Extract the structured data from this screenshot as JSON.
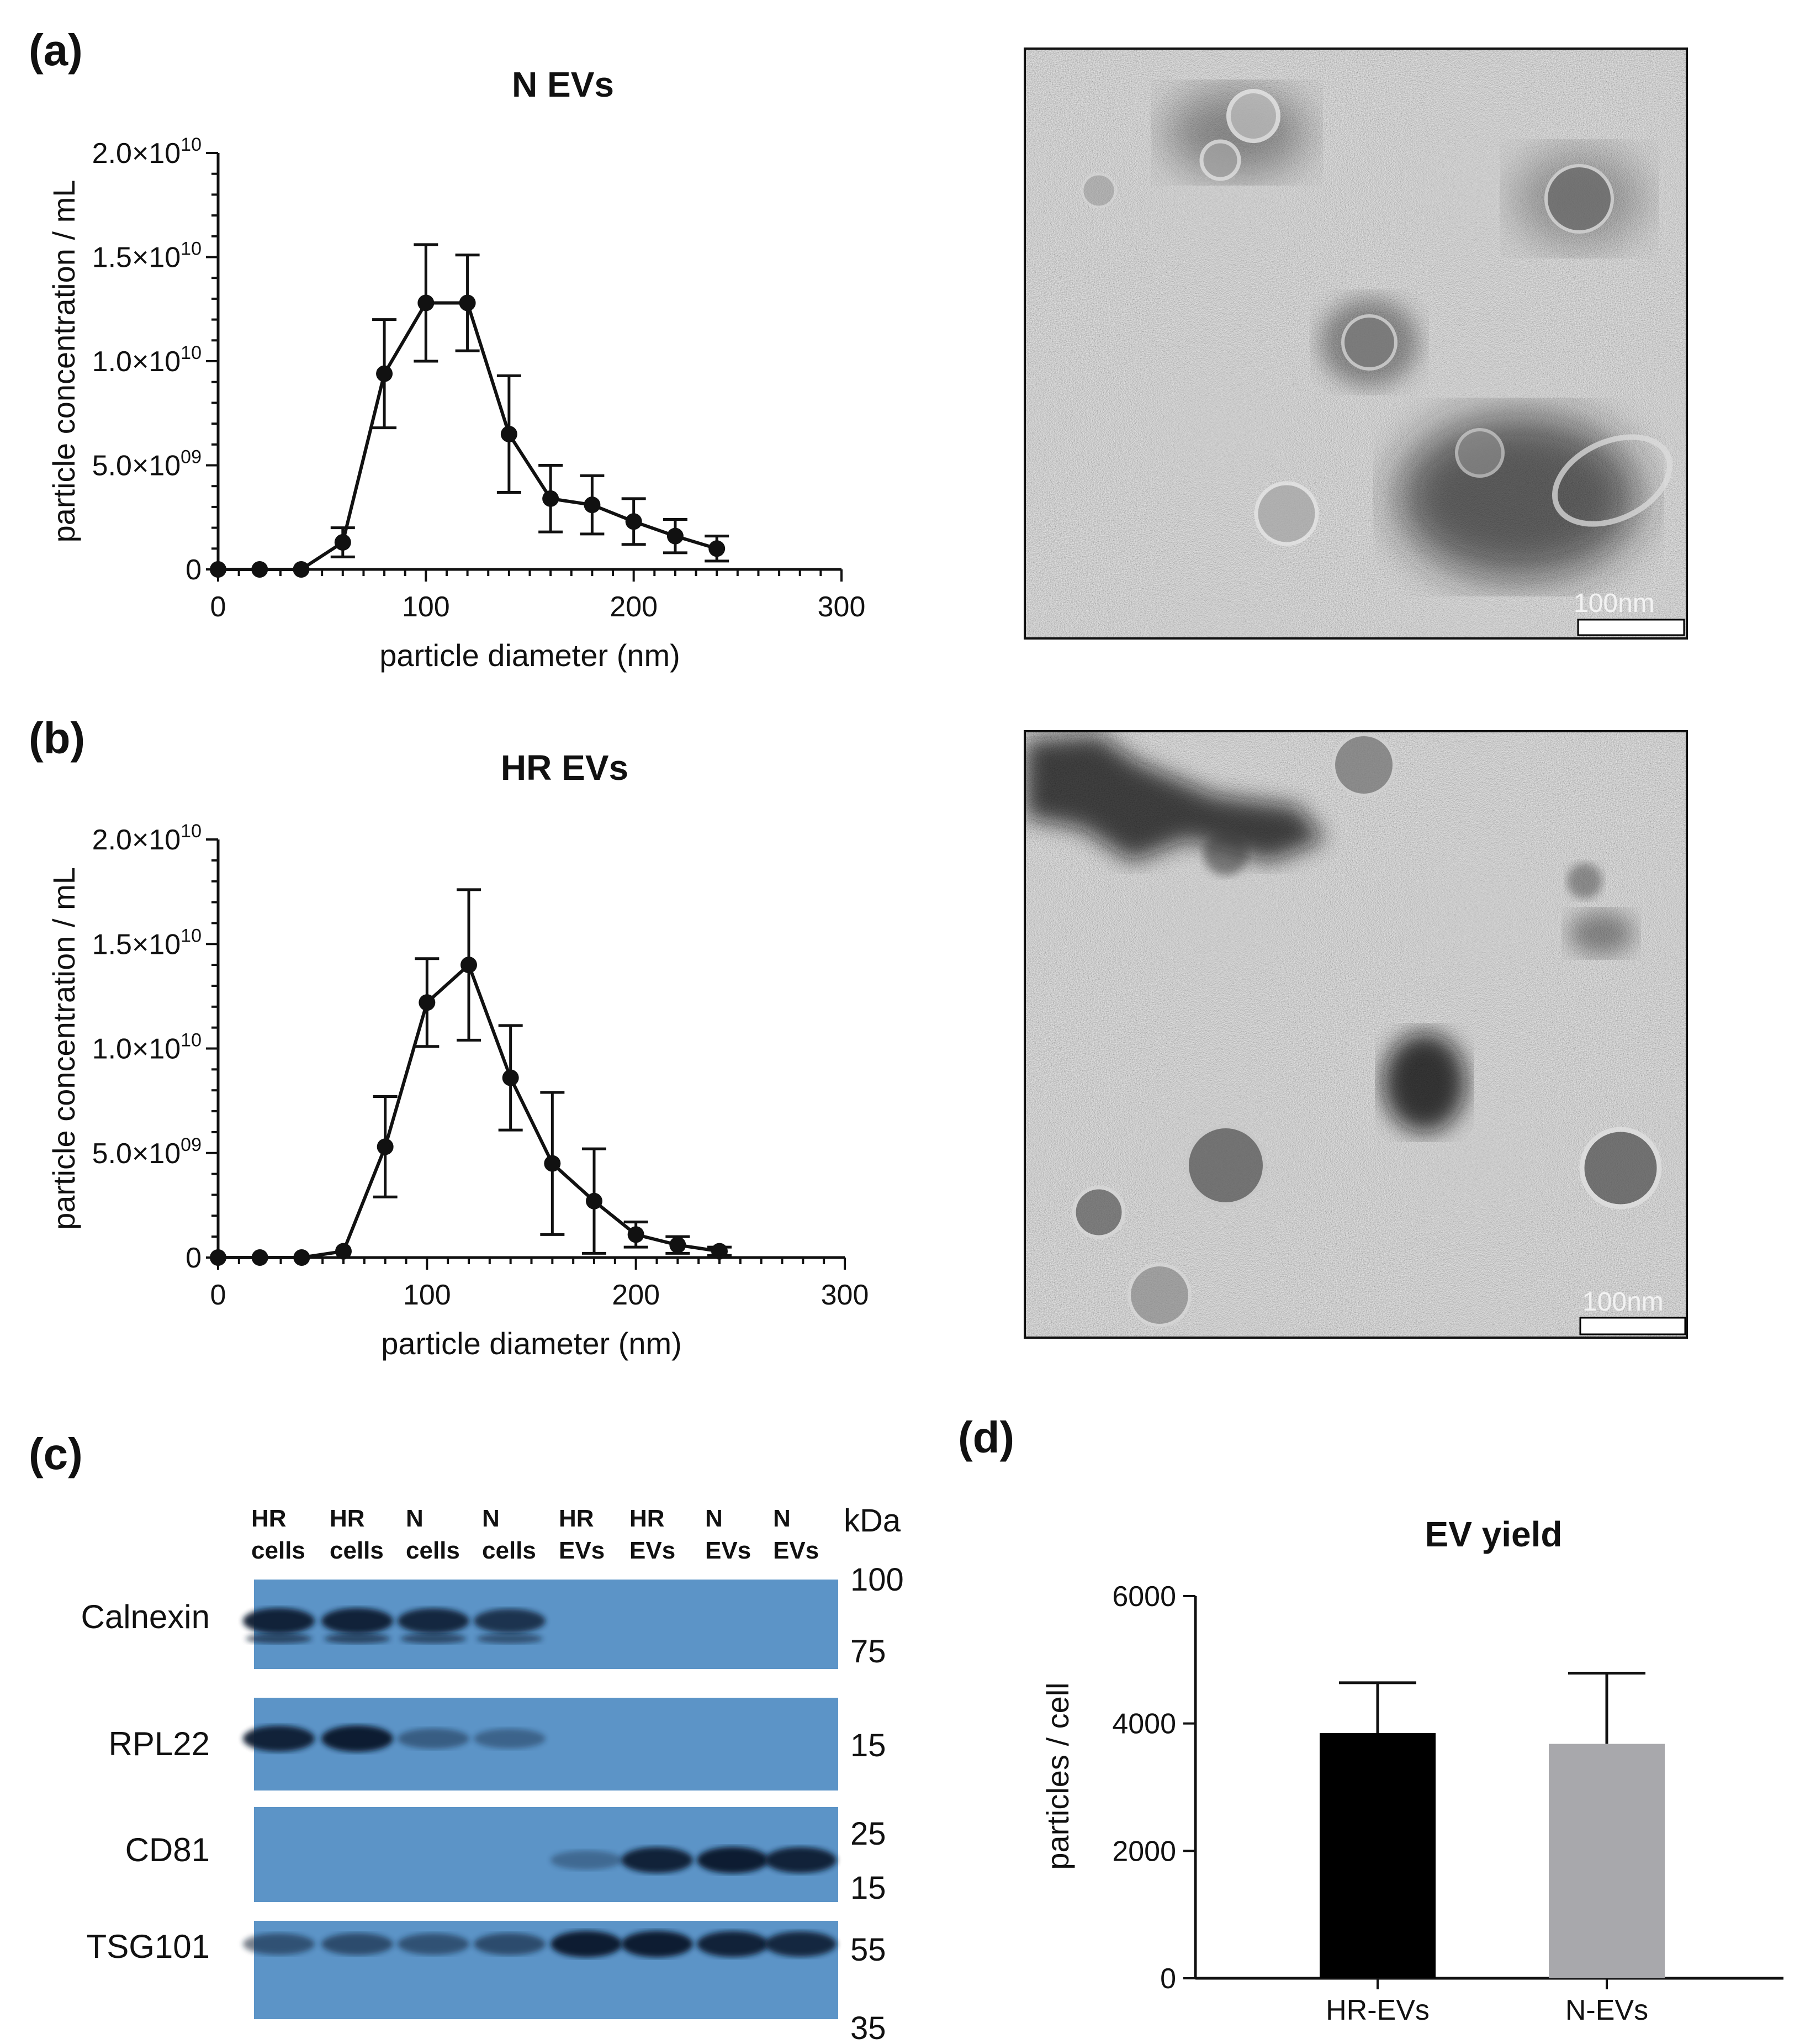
{
  "figure": {
    "panel_a_letter": "(a)",
    "panel_b_letter": "(b)",
    "panel_c_letter": "(c)",
    "panel_d_letter": "(d)"
  },
  "em": {
    "scale_label_a": "100nm",
    "scale_label_b": "100nm"
  },
  "western_blot": {
    "kda_label": "kDa",
    "lanes": [
      {
        "line1": "HR",
        "line2": "cells"
      },
      {
        "line1": "HR",
        "line2": "cells"
      },
      {
        "line1": "N",
        "line2": "cells"
      },
      {
        "line1": "N",
        "line2": "cells"
      },
      {
        "line1": "HR",
        "line2": "EVs"
      },
      {
        "line1": "HR",
        "line2": "EVs"
      },
      {
        "line1": "N",
        "line2": "EVs"
      },
      {
        "line1": "N",
        "line2": "EVs"
      }
    ],
    "strips": [
      {
        "protein": "Calnexin",
        "markers": [
          "100",
          "75"
        ],
        "band_intensity": [
          0.95,
          0.95,
          0.9,
          0.8,
          0.0,
          0.0,
          0.0,
          0.0
        ]
      },
      {
        "protein": "RPL22",
        "markers": [
          "15"
        ],
        "band_intensity": [
          0.95,
          1.0,
          0.45,
          0.4,
          0.0,
          0.0,
          0.0,
          0.0
        ]
      },
      {
        "protein": "CD81",
        "markers": [
          "25",
          "15"
        ],
        "band_intensity": [
          0.0,
          0.0,
          0.0,
          0.0,
          0.35,
          0.95,
          1.0,
          0.95
        ]
      },
      {
        "protein": "TSG101",
        "markers": [
          "55",
          "35"
        ],
        "band_intensity": [
          0.55,
          0.6,
          0.55,
          0.6,
          1.0,
          1.0,
          0.95,
          0.9
        ]
      }
    ]
  },
  "chart_data": [
    {
      "type": "line",
      "title": "N EVs",
      "xlabel": "particle diameter (nm)",
      "ylabel": "particle concentration / mL",
      "xlim": [
        0,
        300
      ],
      "ylim": [
        0,
        20000000000.0
      ],
      "x_ticks": [
        "0",
        "100",
        "200",
        "300"
      ],
      "y_ticks": [
        {
          "mantissa": "0",
          "exp": ""
        },
        {
          "mantissa": "5.0×10",
          "exp": "09"
        },
        {
          "mantissa": "1.0×10",
          "exp": "10"
        },
        {
          "mantissa": "1.5×10",
          "exp": "10"
        },
        {
          "mantissa": "2.0×10",
          "exp": "10"
        }
      ],
      "x": [
        0,
        20,
        40,
        60,
        80,
        100,
        120,
        140,
        160,
        180,
        200,
        220,
        240
      ],
      "y": [
        0,
        0,
        0,
        1300000000.0,
        9400000000.0,
        12800000000.0,
        12800000000.0,
        6500000000.0,
        3400000000.0,
        3100000000.0,
        2300000000.0,
        1600000000.0,
        1000000000.0
      ],
      "error": [
        0,
        0,
        0,
        700000000.0,
        2600000000.0,
        2800000000.0,
        2300000000.0,
        2800000000.0,
        1600000000.0,
        1400000000.0,
        1100000000.0,
        800000000.0,
        600000000.0
      ]
    },
    {
      "type": "line",
      "title": "HR EVs",
      "xlabel": "particle diameter (nm)",
      "ylabel": "particle concentration / mL",
      "xlim": [
        0,
        300
      ],
      "ylim": [
        0,
        20000000000.0
      ],
      "x_ticks": [
        "0",
        "100",
        "200",
        "300"
      ],
      "y_ticks": [
        {
          "mantissa": "0",
          "exp": ""
        },
        {
          "mantissa": "5.0×10",
          "exp": "09"
        },
        {
          "mantissa": "1.0×10",
          "exp": "10"
        },
        {
          "mantissa": "1.5×10",
          "exp": "10"
        },
        {
          "mantissa": "2.0×10",
          "exp": "10"
        }
      ],
      "x": [
        0,
        20,
        40,
        60,
        80,
        100,
        120,
        140,
        160,
        180,
        200,
        220,
        240
      ],
      "y": [
        0,
        0,
        0,
        300000000.0,
        5300000000.0,
        12200000000.0,
        14000000000.0,
        8600000000.0,
        4500000000.0,
        2700000000.0,
        1100000000.0,
        600000000.0,
        300000000.0
      ],
      "error": [
        0,
        0,
        0,
        0,
        2400000000.0,
        2100000000.0,
        3600000000.0,
        2500000000.0,
        3400000000.0,
        2500000000.0,
        600000000.0,
        400000000.0,
        200000000.0
      ]
    },
    {
      "type": "bar",
      "title": "EV yield",
      "xlabel": "",
      "ylabel": "particles / cell",
      "ylim": [
        0,
        6000
      ],
      "y_ticks": [
        "0",
        "2000",
        "4000",
        "6000"
      ],
      "categories": [
        "HR-EVs",
        "N-EVs"
      ],
      "values": [
        3850,
        3680
      ],
      "error": [
        790,
        1110
      ],
      "colors": [
        "#000000",
        "#a8a8ac"
      ]
    }
  ]
}
